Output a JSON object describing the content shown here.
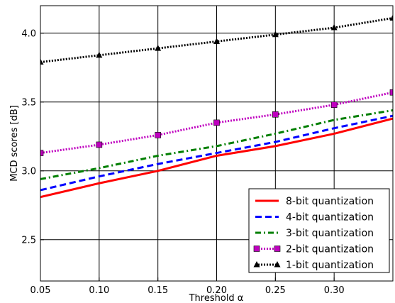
{
  "chart_data": {
    "type": "line",
    "title": "",
    "xlabel": "Threshold α",
    "ylabel": "MCD scores [dB]",
    "xlim": [
      0.05,
      0.35
    ],
    "ylim": [
      2.2,
      4.2
    ],
    "grid": true,
    "legend_position": "lower-right",
    "x_ticks": [
      {
        "value": 0.05,
        "label": "0.05"
      },
      {
        "value": 0.1,
        "label": "0.10"
      },
      {
        "value": 0.15,
        "label": "0.15"
      },
      {
        "value": 0.2,
        "label": "0.20"
      },
      {
        "value": 0.25,
        "label": "0.25"
      },
      {
        "value": 0.3,
        "label": "0.30"
      }
    ],
    "y_ticks": [
      {
        "value": 2.5,
        "label": "2.5"
      },
      {
        "value": 3.0,
        "label": "3.0"
      },
      {
        "value": 3.5,
        "label": "3.5"
      },
      {
        "value": 4.0,
        "label": "4.0"
      }
    ],
    "x": [
      0.05,
      0.1,
      0.15,
      0.2,
      0.25,
      0.3,
      0.35
    ],
    "series": [
      {
        "name": "8-bit quantization",
        "color": "#ff0000",
        "style": "solid",
        "marker": "none",
        "values": [
          2.81,
          2.91,
          3.0,
          3.11,
          3.18,
          3.27,
          3.38
        ]
      },
      {
        "name": "4-bit quantization",
        "color": "#0000ff",
        "style": "dashed",
        "marker": "none",
        "values": [
          2.86,
          2.96,
          3.05,
          3.13,
          3.21,
          3.31,
          3.4
        ]
      },
      {
        "name": "3-bit quantization",
        "color": "#007f00",
        "style": "dashdot",
        "marker": "none",
        "values": [
          2.94,
          3.02,
          3.11,
          3.18,
          3.27,
          3.37,
          3.44
        ]
      },
      {
        "name": "2-bit quantization",
        "color": "#bf00bf",
        "style": "dotted",
        "marker": "square",
        "values": [
          3.13,
          3.19,
          3.26,
          3.35,
          3.41,
          3.48,
          3.57
        ]
      },
      {
        "name": "1-bit quantization",
        "color": "#000000",
        "style": "dotted",
        "marker": "triangle",
        "values": [
          3.79,
          3.84,
          3.89,
          3.94,
          3.99,
          4.04,
          4.11
        ]
      }
    ]
  }
}
